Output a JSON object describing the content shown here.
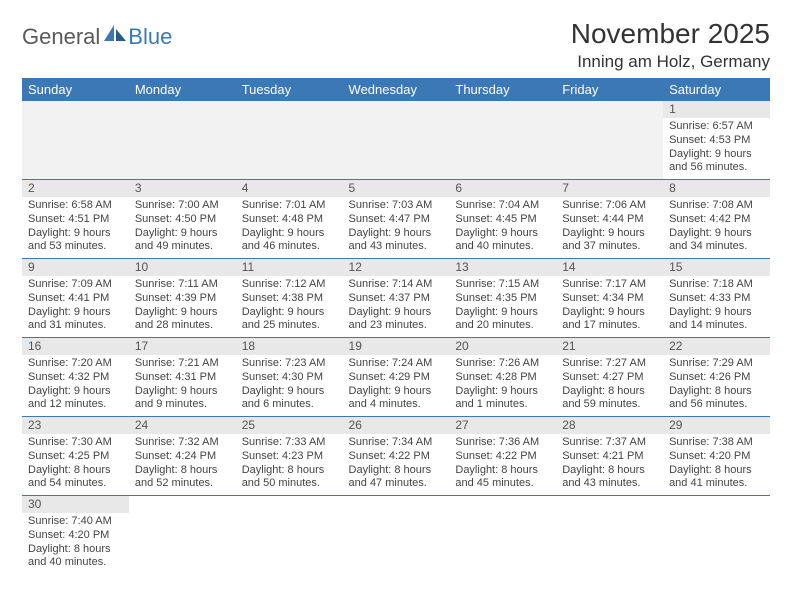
{
  "logo": {
    "part1": "General",
    "part2": "Blue"
  },
  "title": "November 2025",
  "location": "Inning am Holz, Germany",
  "colors": {
    "header_bg": "#3b78b5",
    "header_text": "#ffffff",
    "daynum_bg": "#e8e8e8",
    "blank_bg": "#f2f2f2",
    "cell_border": "#3b78b5",
    "body_text": "#444444"
  },
  "weekdays": [
    "Sunday",
    "Monday",
    "Tuesday",
    "Wednesday",
    "Thursday",
    "Friday",
    "Saturday"
  ],
  "first_day_index": 6,
  "days_in_month": 30,
  "days": {
    "1": {
      "sunrise": "6:57 AM",
      "sunset": "4:53 PM",
      "daylight_h": 9,
      "daylight_m": 56
    },
    "2": {
      "sunrise": "6:58 AM",
      "sunset": "4:51 PM",
      "daylight_h": 9,
      "daylight_m": 53
    },
    "3": {
      "sunrise": "7:00 AM",
      "sunset": "4:50 PM",
      "daylight_h": 9,
      "daylight_m": 49
    },
    "4": {
      "sunrise": "7:01 AM",
      "sunset": "4:48 PM",
      "daylight_h": 9,
      "daylight_m": 46
    },
    "5": {
      "sunrise": "7:03 AM",
      "sunset": "4:47 PM",
      "daylight_h": 9,
      "daylight_m": 43
    },
    "6": {
      "sunrise": "7:04 AM",
      "sunset": "4:45 PM",
      "daylight_h": 9,
      "daylight_m": 40
    },
    "7": {
      "sunrise": "7:06 AM",
      "sunset": "4:44 PM",
      "daylight_h": 9,
      "daylight_m": 37
    },
    "8": {
      "sunrise": "7:08 AM",
      "sunset": "4:42 PM",
      "daylight_h": 9,
      "daylight_m": 34
    },
    "9": {
      "sunrise": "7:09 AM",
      "sunset": "4:41 PM",
      "daylight_h": 9,
      "daylight_m": 31
    },
    "10": {
      "sunrise": "7:11 AM",
      "sunset": "4:39 PM",
      "daylight_h": 9,
      "daylight_m": 28
    },
    "11": {
      "sunrise": "7:12 AM",
      "sunset": "4:38 PM",
      "daylight_h": 9,
      "daylight_m": 25
    },
    "12": {
      "sunrise": "7:14 AM",
      "sunset": "4:37 PM",
      "daylight_h": 9,
      "daylight_m": 23
    },
    "13": {
      "sunrise": "7:15 AM",
      "sunset": "4:35 PM",
      "daylight_h": 9,
      "daylight_m": 20
    },
    "14": {
      "sunrise": "7:17 AM",
      "sunset": "4:34 PM",
      "daylight_h": 9,
      "daylight_m": 17
    },
    "15": {
      "sunrise": "7:18 AM",
      "sunset": "4:33 PM",
      "daylight_h": 9,
      "daylight_m": 14
    },
    "16": {
      "sunrise": "7:20 AM",
      "sunset": "4:32 PM",
      "daylight_h": 9,
      "daylight_m": 12
    },
    "17": {
      "sunrise": "7:21 AM",
      "sunset": "4:31 PM",
      "daylight_h": 9,
      "daylight_m": 9
    },
    "18": {
      "sunrise": "7:23 AM",
      "sunset": "4:30 PM",
      "daylight_h": 9,
      "daylight_m": 6
    },
    "19": {
      "sunrise": "7:24 AM",
      "sunset": "4:29 PM",
      "daylight_h": 9,
      "daylight_m": 4
    },
    "20": {
      "sunrise": "7:26 AM",
      "sunset": "4:28 PM",
      "daylight_h": 9,
      "daylight_m": 1
    },
    "21": {
      "sunrise": "7:27 AM",
      "sunset": "4:27 PM",
      "daylight_h": 8,
      "daylight_m": 59
    },
    "22": {
      "sunrise": "7:29 AM",
      "sunset": "4:26 PM",
      "daylight_h": 8,
      "daylight_m": 56
    },
    "23": {
      "sunrise": "7:30 AM",
      "sunset": "4:25 PM",
      "daylight_h": 8,
      "daylight_m": 54
    },
    "24": {
      "sunrise": "7:32 AM",
      "sunset": "4:24 PM",
      "daylight_h": 8,
      "daylight_m": 52
    },
    "25": {
      "sunrise": "7:33 AM",
      "sunset": "4:23 PM",
      "daylight_h": 8,
      "daylight_m": 50
    },
    "26": {
      "sunrise": "7:34 AM",
      "sunset": "4:22 PM",
      "daylight_h": 8,
      "daylight_m": 47
    },
    "27": {
      "sunrise": "7:36 AM",
      "sunset": "4:22 PM",
      "daylight_h": 8,
      "daylight_m": 45
    },
    "28": {
      "sunrise": "7:37 AM",
      "sunset": "4:21 PM",
      "daylight_h": 8,
      "daylight_m": 43
    },
    "29": {
      "sunrise": "7:38 AM",
      "sunset": "4:20 PM",
      "daylight_h": 8,
      "daylight_m": 41
    },
    "30": {
      "sunrise": "7:40 AM",
      "sunset": "4:20 PM",
      "daylight_h": 8,
      "daylight_m": 40
    }
  }
}
